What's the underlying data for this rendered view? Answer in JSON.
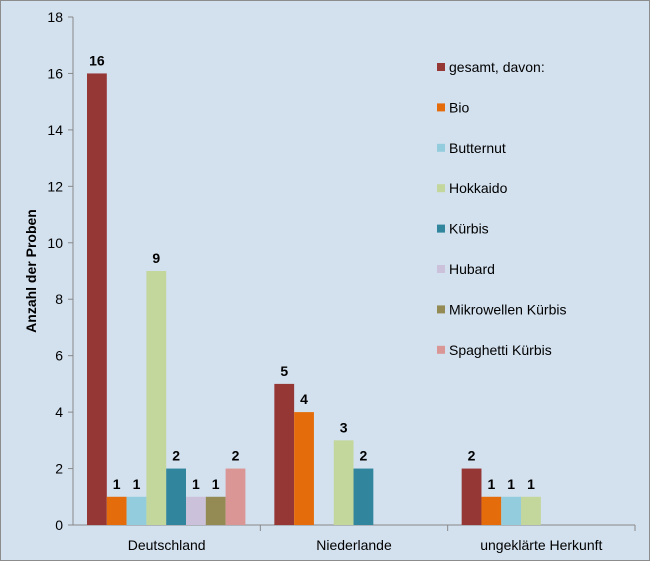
{
  "chart_data": {
    "type": "bar",
    "title": "",
    "xlabel": "",
    "ylabel": "Anzahl der Proben",
    "ylim": [
      0,
      18
    ],
    "yticks": [
      0,
      2,
      4,
      6,
      8,
      10,
      12,
      14,
      16,
      18
    ],
    "grid": false,
    "legend_position": "right",
    "categories": [
      "Deutschland",
      "Niederlande",
      "ungeklärte Herkunft"
    ],
    "series": [
      {
        "name": "gesamt, davon:",
        "color": "#953735",
        "values": [
          16,
          5,
          2
        ]
      },
      {
        "name": " Bio",
        "color": "#e46c0a",
        "values": [
          1,
          4,
          1
        ]
      },
      {
        "name": "Butternut",
        "color": "#93cddd",
        "values": [
          1,
          null,
          1
        ]
      },
      {
        "name": "Hokkaido",
        "color": "#c3d69b",
        "values": [
          9,
          3,
          1
        ]
      },
      {
        "name": "Kürbis",
        "color": "#31859c",
        "values": [
          2,
          2,
          null
        ]
      },
      {
        "name": "Hubard",
        "color": "#ccc1da",
        "values": [
          1,
          null,
          null
        ]
      },
      {
        "name": "Mikrowellen Kürbis",
        "color": "#948a54",
        "values": [
          1,
          null,
          null
        ]
      },
      {
        "name": "Spaghetti Kürbis",
        "color": "#d99694",
        "values": [
          2,
          null,
          null
        ]
      }
    ]
  }
}
